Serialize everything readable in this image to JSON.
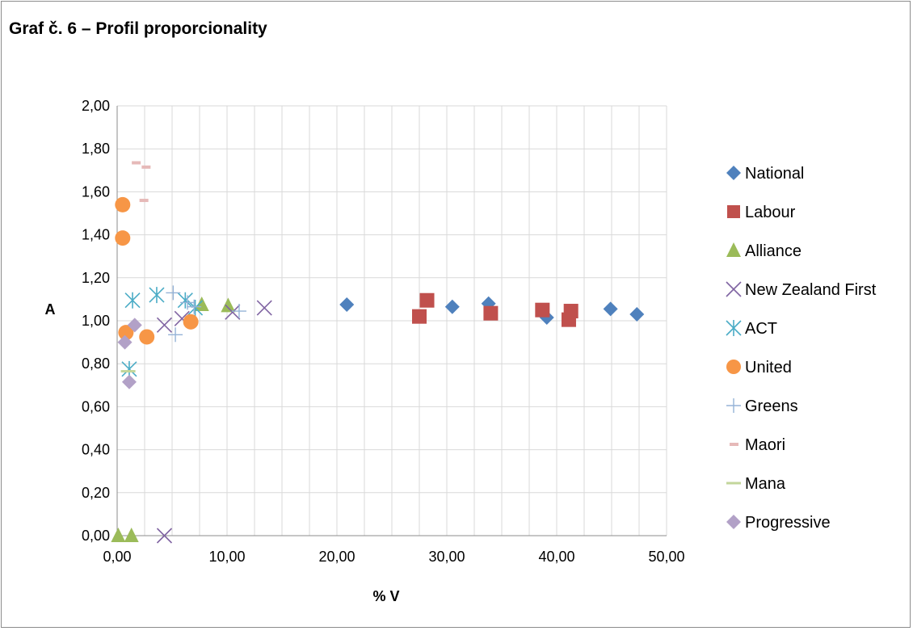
{
  "chart_data": {
    "type": "scatter",
    "title": "Graf č. 6 – Profil proporcionality",
    "xlabel": "% V",
    "ylabel": "A",
    "xlim": [
      0,
      50
    ],
    "ylim": [
      0,
      2
    ],
    "x_tick_labels": [
      "0,00",
      "10,00",
      "20,00",
      "30,00",
      "40,00",
      "50,00"
    ],
    "y_tick_labels": [
      "0,00",
      "0,20",
      "0,40",
      "0,60",
      "0,80",
      "1,00",
      "1,20",
      "1,40",
      "1,60",
      "1,80",
      "2,00"
    ],
    "grid": true,
    "legend_position": "right",
    "series": [
      {
        "name": "National",
        "marker": "diamond",
        "color": "#4f81bd",
        "points": [
          [
            20.9,
            1.075
          ],
          [
            30.5,
            1.065
          ],
          [
            33.8,
            1.08
          ],
          [
            39.1,
            1.015
          ],
          [
            44.9,
            1.055
          ],
          [
            47.3,
            1.03
          ]
        ]
      },
      {
        "name": "Labour",
        "marker": "square",
        "color": "#c0504d",
        "points": [
          [
            27.5,
            1.02
          ],
          [
            28.2,
            1.095
          ],
          [
            34.0,
            1.035
          ],
          [
            38.7,
            1.05
          ],
          [
            41.1,
            1.005
          ],
          [
            41.3,
            1.045
          ]
        ]
      },
      {
        "name": "Alliance",
        "marker": "triangle",
        "color": "#9bbb59",
        "points": [
          [
            0.1,
            0.0
          ],
          [
            1.3,
            0.0
          ],
          [
            7.7,
            1.075
          ],
          [
            10.1,
            1.07
          ]
        ]
      },
      {
        "name": "New Zealand First",
        "marker": "x",
        "color": "#8064a2",
        "points": [
          [
            4.3,
            0.0
          ],
          [
            4.3,
            0.98
          ],
          [
            5.9,
            1.01
          ],
          [
            10.5,
            1.04
          ],
          [
            13.4,
            1.06
          ]
        ]
      },
      {
        "name": "ACT",
        "marker": "star",
        "color": "#4bacc6",
        "points": [
          [
            1.1,
            0.775
          ],
          [
            1.4,
            1.095
          ],
          [
            3.6,
            1.12
          ],
          [
            6.2,
            1.095
          ],
          [
            7.1,
            1.06
          ]
        ]
      },
      {
        "name": "United",
        "marker": "circle",
        "color": "#f79646",
        "points": [
          [
            0.5,
            1.54
          ],
          [
            0.5,
            1.385
          ],
          [
            0.8,
            0.945
          ],
          [
            2.7,
            0.925
          ],
          [
            6.7,
            0.995
          ]
        ]
      },
      {
        "name": "Greens",
        "marker": "plus",
        "color": "#95b3d7",
        "points": [
          [
            5.1,
            1.13
          ],
          [
            5.3,
            0.935
          ],
          [
            6.4,
            1.085
          ],
          [
            7.0,
            1.065
          ],
          [
            11.1,
            1.045
          ]
        ]
      },
      {
        "name": "Maori",
        "marker": "dash",
        "color": "#e6b9b8",
        "points": [
          [
            1.7,
            1.735
          ],
          [
            2.6,
            1.715
          ],
          [
            2.4,
            1.56
          ]
        ]
      },
      {
        "name": "Mana",
        "marker": "longdash",
        "color": "#c3d69b",
        "points": [
          [
            1.0,
            0.765
          ]
        ]
      },
      {
        "name": "Progressive",
        "marker": "diamond",
        "color": "#b2a1c7",
        "points": [
          [
            0.7,
            0.9
          ],
          [
            1.1,
            0.715
          ],
          [
            1.6,
            0.98
          ]
        ]
      }
    ]
  }
}
